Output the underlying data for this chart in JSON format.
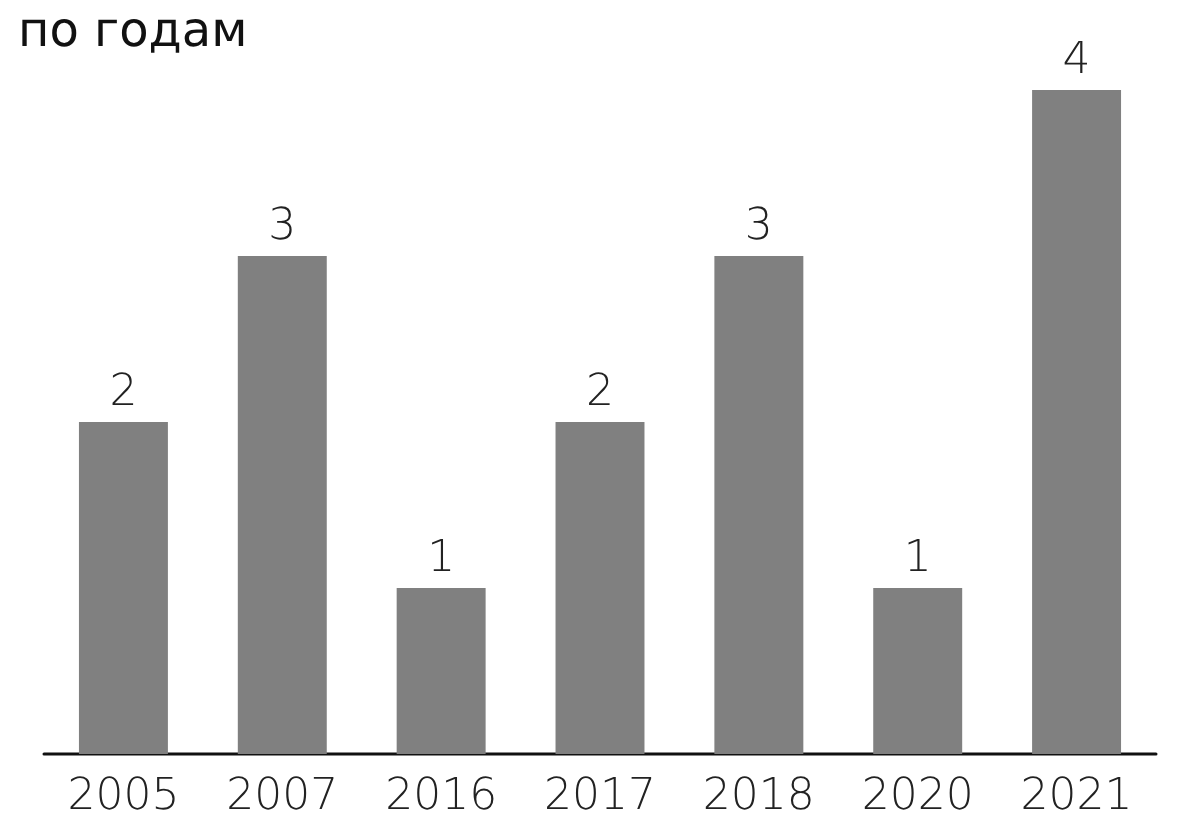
{
  "chart_data": {
    "type": "bar",
    "title": "по годам",
    "categories": [
      "2005",
      "2007",
      "2016",
      "2017",
      "2018",
      "2020",
      "2021"
    ],
    "values": [
      2,
      3,
      1,
      2,
      3,
      1,
      4
    ],
    "color": "#808080",
    "data_labels": true
  }
}
